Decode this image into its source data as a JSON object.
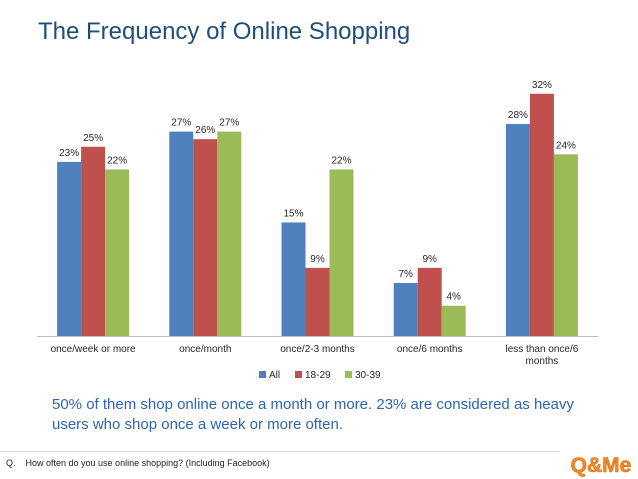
{
  "title": "The Frequency of Online Shopping",
  "summary": "50% of them shop online once a month or more. 23% are considered as heavy users who shop once a week or more often.",
  "question": "Q.    How often do you use online shopping? (Including Facebook)",
  "logo_text": "Q&Me",
  "chart_data": {
    "type": "bar",
    "categories": [
      "once/week or more",
      "once/month",
      "once/2-3 months",
      "once/6 months",
      "less than once/6 months"
    ],
    "series": [
      {
        "name": "All",
        "values": [
          23,
          27,
          15,
          7,
          28
        ],
        "color": "#4f81bd"
      },
      {
        "name": "18-29",
        "values": [
          25,
          26,
          9,
          9,
          32
        ],
        "color": "#c0504d"
      },
      {
        "name": "30-39",
        "values": [
          22,
          27,
          22,
          4,
          24
        ],
        "color": "#9bbb59"
      }
    ],
    "value_suffix": "%",
    "ylim": [
      0,
      34
    ],
    "legend_position": "bottom",
    "grid": false,
    "title": "",
    "xlabel": "",
    "ylabel": ""
  },
  "colors": {
    "title": "#1f4e79",
    "summary": "#2e64b3",
    "logo_orange": "#f08a24"
  }
}
